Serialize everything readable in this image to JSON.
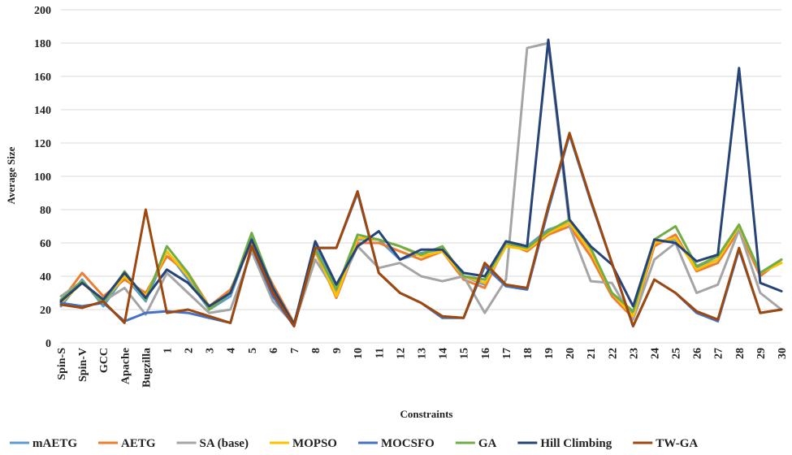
{
  "chart_data": {
    "type": "line",
    "title": "",
    "xlabel": "Constraints",
    "ylabel": "Average Size",
    "ylim": [
      0,
      200
    ],
    "yticks": [
      0,
      20,
      40,
      60,
      80,
      100,
      120,
      140,
      160,
      180,
      200
    ],
    "grid": true,
    "legend_position": "bottom",
    "categories": [
      "Spin-S",
      "Spin-V",
      "GCC",
      "Apache",
      "Bugzilla",
      "1",
      "2",
      "3",
      "4",
      "5",
      "6",
      "7",
      "8",
      "9",
      "10",
      "11",
      "12",
      "13",
      "14",
      "15",
      "16",
      "17",
      "18",
      "19",
      "20",
      "21",
      "22",
      "23",
      "24",
      "25",
      "26",
      "27",
      "28",
      "29",
      "30"
    ],
    "series": [
      {
        "name": "mAETG",
        "color": "#5b9bd5",
        "values": [
          22,
          38,
          22,
          40,
          25,
          55,
          38,
          20,
          28,
          63,
          30,
          10,
          58,
          32,
          62,
          62,
          50,
          54,
          56,
          40,
          35,
          58,
          58,
          68,
          72,
          55,
          30,
          18,
          60,
          62,
          45,
          50,
          70,
          42,
          50
        ]
      },
      {
        "name": "AETG",
        "color": "#ed7d31",
        "values": [
          25,
          42,
          28,
          38,
          30,
          52,
          42,
          22,
          32,
          60,
          35,
          12,
          55,
          27,
          60,
          60,
          55,
          50,
          55,
          38,
          33,
          60,
          55,
          65,
          70,
          52,
          28,
          15,
          58,
          65,
          43,
          48,
          68,
          40,
          50
        ]
      },
      {
        "name": "SA (base)",
        "color": "#a5a5a5",
        "values": [
          28,
          37,
          25,
          33,
          17,
          42,
          30,
          18,
          20,
          55,
          25,
          11,
          50,
          30,
          58,
          45,
          48,
          40,
          37,
          40,
          18,
          38,
          177,
          180,
          70,
          37,
          36,
          14,
          50,
          60,
          30,
          35,
          68,
          30,
          20
        ]
      },
      {
        "name": "MOPSO",
        "color": "#ffc000",
        "values": [
          24,
          36,
          25,
          40,
          28,
          55,
          40,
          22,
          30,
          62,
          32,
          11,
          56,
          28,
          63,
          62,
          58,
          52,
          55,
          40,
          36,
          58,
          56,
          66,
          72,
          55,
          30,
          16,
          60,
          63,
          44,
          50,
          70,
          42,
          48
        ]
      },
      {
        "name": "MOCSFO",
        "color": "#4472c4",
        "values": [
          24,
          22,
          24,
          13,
          18,
          19,
          18,
          15,
          12,
          58,
          28,
          10,
          57,
          57,
          90,
          42,
          30,
          24,
          15,
          15,
          46,
          34,
          32,
          80,
          125,
          85,
          48,
          10,
          38,
          30,
          18,
          13,
          56,
          18,
          20
        ]
      },
      {
        "name": "GA",
        "color": "#70ad47",
        "values": [
          26,
          37,
          24,
          43,
          26,
          58,
          42,
          20,
          30,
          66,
          33,
          11,
          56,
          32,
          65,
          62,
          58,
          53,
          58,
          40,
          38,
          60,
          57,
          67,
          74,
          57,
          30,
          19,
          62,
          70,
          46,
          52,
          71,
          42,
          50
        ]
      },
      {
        "name": "Hill Climbing",
        "color": "#264478",
        "values": [
          25,
          36,
          26,
          42,
          27,
          44,
          36,
          22,
          30,
          62,
          33,
          11,
          61,
          35,
          58,
          67,
          50,
          56,
          56,
          42,
          40,
          61,
          58,
          182,
          74,
          58,
          47,
          22,
          62,
          60,
          49,
          53,
          165,
          36,
          31
        ]
      },
      {
        "name": "TW-GA",
        "color": "#9e480e",
        "values": [
          23,
          21,
          25,
          12,
          80,
          18,
          20,
          16,
          12,
          58,
          30,
          10,
          57,
          57,
          91,
          42,
          30,
          24,
          16,
          15,
          48,
          35,
          33,
          82,
          126,
          86,
          48,
          10,
          38,
          30,
          19,
          14,
          57,
          18,
          20
        ]
      }
    ]
  }
}
